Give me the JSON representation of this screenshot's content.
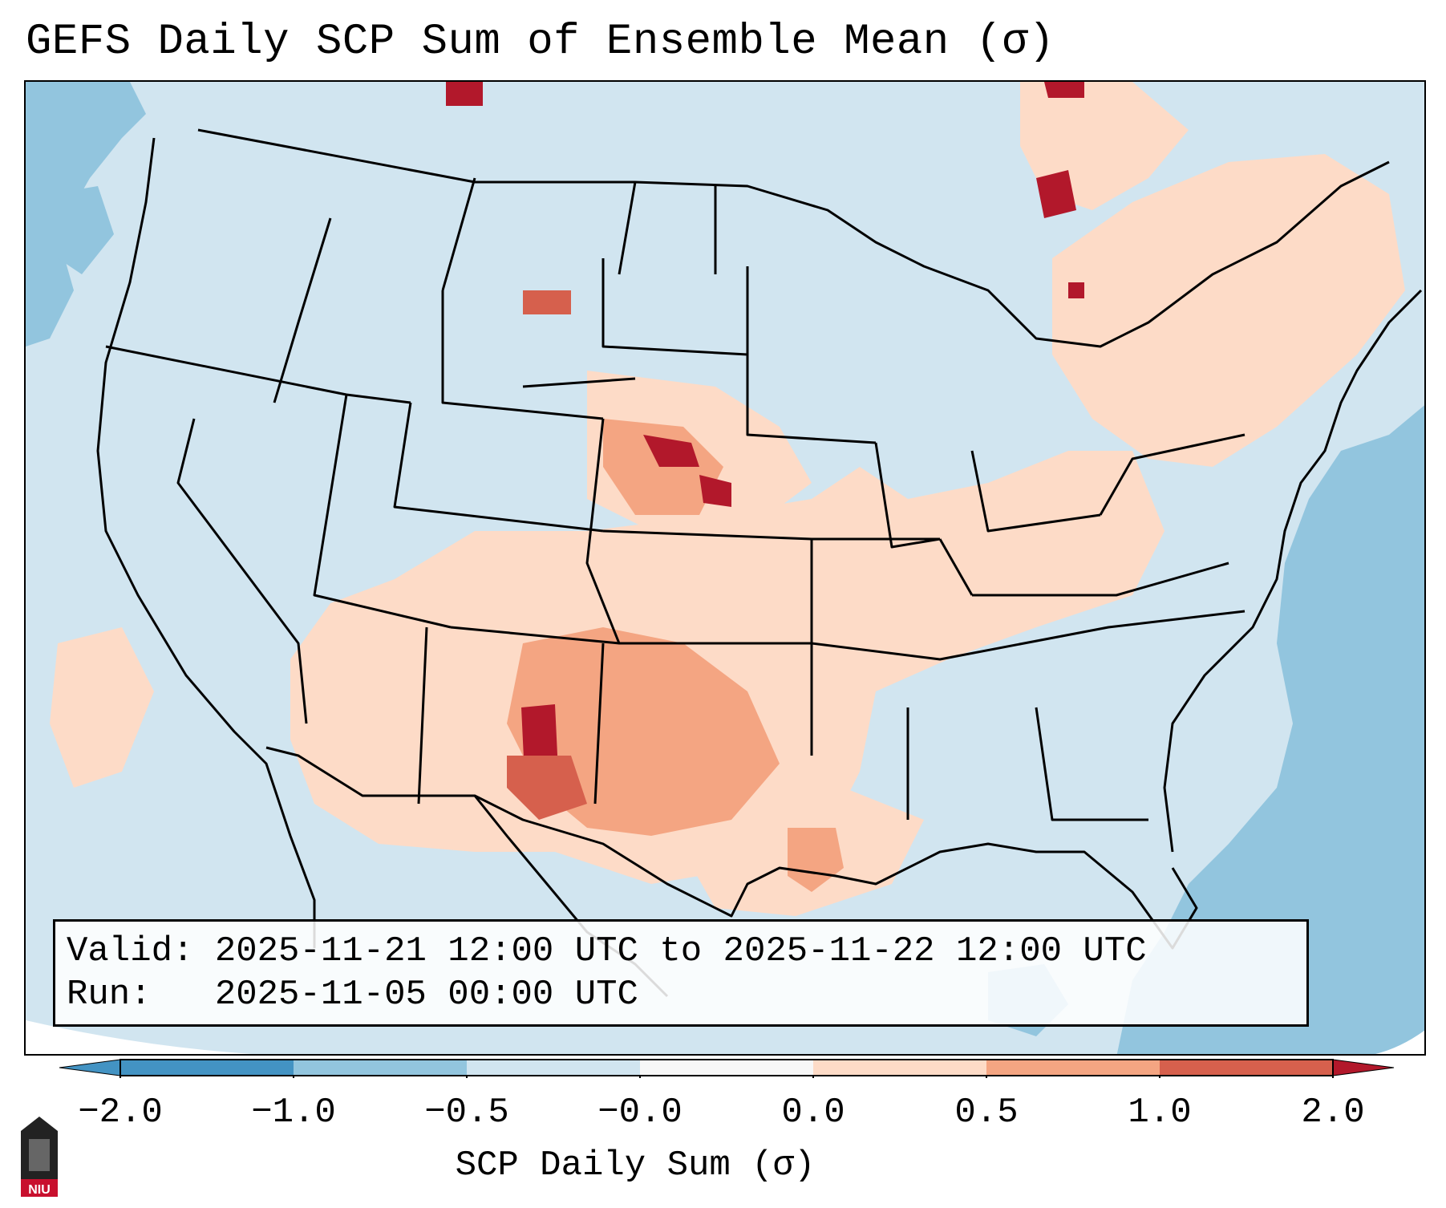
{
  "title": "GEFS Daily SCP Sum of Ensemble Mean (σ)",
  "info": {
    "valid_label": "Valid:",
    "valid_value": "2025-11-21 12:00 UTC to 2025-11-22 12:00 UTC",
    "run_label": "Run:",
    "run_value": "2025-11-05 00:00 UTC"
  },
  "colorbar": {
    "label": "SCP Daily Sum (σ)",
    "ticks": [
      "−2.0",
      "−1.0",
      "−0.5",
      "−0.0",
      "0.0",
      "0.5",
      "1.0",
      "2.0"
    ],
    "colors": [
      "#4393c3",
      "#92c5de",
      "#d1e5f0",
      "#f7f7f7",
      "#fddbc7",
      "#f4a582",
      "#d6604d",
      "#b2182b"
    ],
    "extend": "both"
  },
  "map": {
    "region": "CONUS",
    "background_color": "#d1e5f0",
    "ocean_negative_color": "#92c5de",
    "positive_regions": [
      {
        "name": "Southern Plains / Texas",
        "level": "0.5 to 1.0"
      },
      {
        "name": "West Texas / Eastern New Mexico",
        "level": "1.0 to 2.0"
      },
      {
        "name": "Nebraska / South Dakota",
        "level": "1.0 to 2.0"
      },
      {
        "name": "Mid-South / Ohio Valley",
        "level": "0.0 to 0.5"
      }
    ]
  },
  "logo": {
    "text": "NIU",
    "color": "#c8102e"
  }
}
